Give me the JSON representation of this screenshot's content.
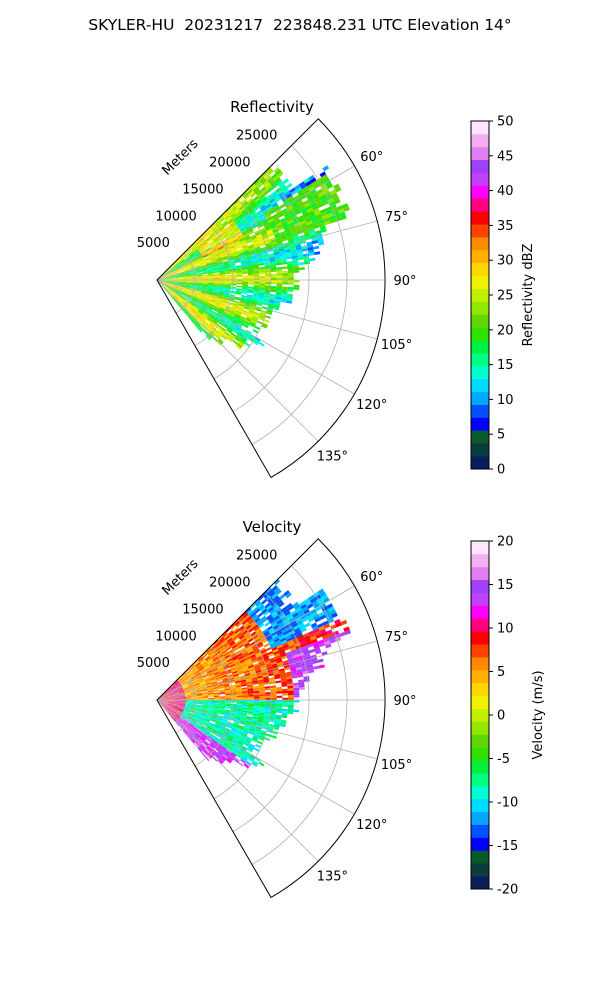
{
  "figure": {
    "title": "SKYLER-HU  20231217  223848.231 UTC Elevation 14°"
  },
  "chart_data": [
    {
      "type": "heatmap",
      "projection": "polar-sector",
      "title": "Reflectivity",
      "range_label": "Meters",
      "range_ticks": [
        5000,
        10000,
        15000,
        20000,
        25000
      ],
      "range_max": 30000,
      "azimuth_limits_deg": [
        45,
        150
      ],
      "azimuth_ticks": [
        60,
        75,
        90,
        105,
        120,
        135
      ],
      "azimuth_tick_labels": [
        "60°",
        "75°",
        "90°",
        "105°",
        "120°",
        "135°"
      ],
      "grid": true,
      "colorbar": {
        "label": "Reflectivity dBZ",
        "min": 0,
        "max": 50,
        "ticks": [
          0,
          5,
          10,
          15,
          20,
          25,
          30,
          35,
          40,
          45,
          50
        ],
        "colors": [
          "#0a1d5c",
          "#0b3d3d",
          "#0a5a2a",
          "#0000ff",
          "#0050ff",
          "#00a6ff",
          "#00dcff",
          "#00ffd0",
          "#00ff80",
          "#00f040",
          "#30e000",
          "#60d800",
          "#90e800",
          "#c0f000",
          "#f0f000",
          "#ffd700",
          "#ffb000",
          "#ff8a00",
          "#ff4000",
          "#ff0000",
          "#ff0080",
          "#ff00ff",
          "#c040ff",
          "#a040ff",
          "#e080f0",
          "#f0b0f0",
          "#ffe6ff"
        ]
      }
    },
    {
      "type": "heatmap",
      "projection": "polar-sector",
      "title": "Velocity",
      "range_label": "Meters",
      "range_ticks": [
        5000,
        10000,
        15000,
        20000,
        25000
      ],
      "range_max": 30000,
      "azimuth_limits_deg": [
        45,
        150
      ],
      "azimuth_ticks": [
        60,
        75,
        90,
        105,
        120,
        135
      ],
      "azimuth_tick_labels": [
        "60°",
        "75°",
        "90°",
        "105°",
        "120°",
        "135°"
      ],
      "grid": true,
      "colorbar": {
        "label": "Velocity (m/s)",
        "min": -20,
        "max": 20,
        "ticks": [
          -20,
          -15,
          -10,
          -5,
          0,
          5,
          10,
          15,
          20
        ],
        "colors": [
          "#0a1d5c",
          "#0b3d3d",
          "#0a5a2a",
          "#0000ff",
          "#0050ff",
          "#00a6ff",
          "#00dcff",
          "#00ffd0",
          "#00ff80",
          "#00f040",
          "#30e000",
          "#60d800",
          "#90e800",
          "#c0f000",
          "#f0f000",
          "#ffd700",
          "#ffb000",
          "#ff8a00",
          "#ff4000",
          "#ff0000",
          "#ff0080",
          "#ff00ff",
          "#c040ff",
          "#a040ff",
          "#e080f0",
          "#f0b0f0",
          "#ffe6ff"
        ]
      }
    }
  ]
}
